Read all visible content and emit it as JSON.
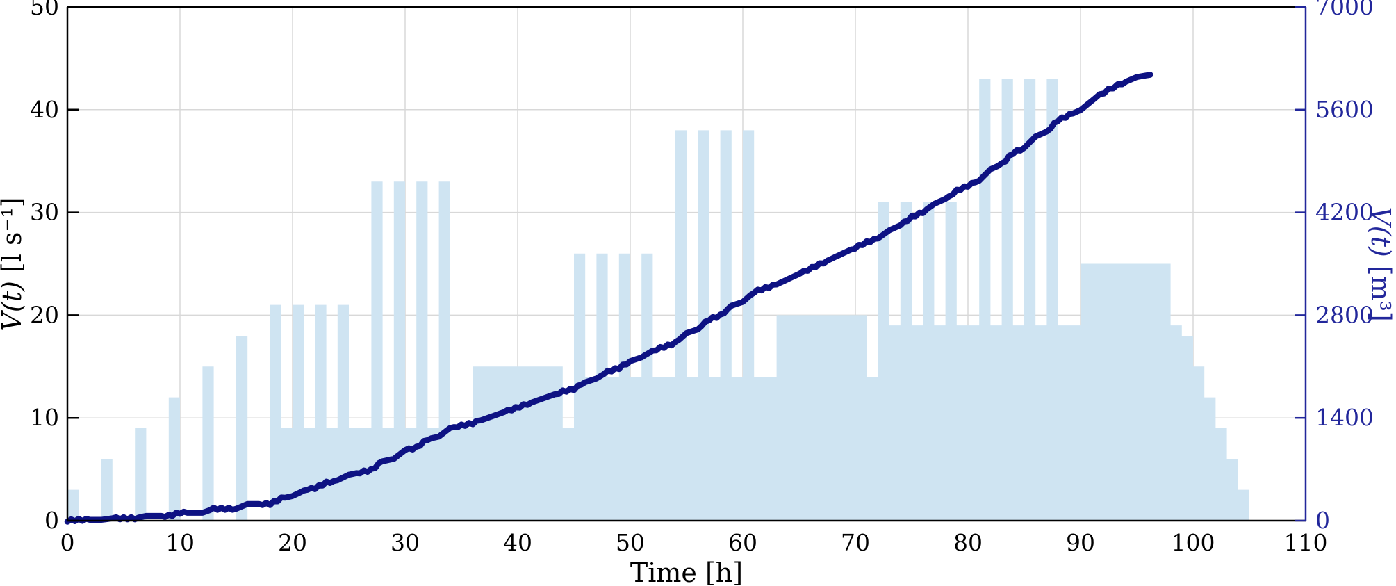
{
  "chart_data": {
    "type": "area",
    "title": "",
    "xlabel": "Time [h]",
    "ylabel_left_var": "V̇(t)",
    "ylabel_left_unit": " [l s⁻¹]",
    "ylabel_right_var": "V(t)",
    "ylabel_right_unit": " [m³]",
    "x_axis": {
      "min": 0,
      "max": 110,
      "tick_step": 10,
      "tick_labels": [
        "0",
        "10",
        "20",
        "30",
        "40",
        "50",
        "60",
        "70",
        "80",
        "90",
        "100",
        "110"
      ]
    },
    "y_left_axis": {
      "min": 0,
      "max": 50,
      "tick_step": 10,
      "tick_labels": [
        "0",
        "10",
        "20",
        "30",
        "40",
        "50"
      ]
    },
    "y_right_axis": {
      "min": 0,
      "max": 7000,
      "tick_step": 1400,
      "tick_labels": [
        "0",
        "1400",
        "2800",
        "4200",
        "5600",
        "7000"
      ]
    },
    "grid": true,
    "legend": "none",
    "series": [
      {
        "name": "flow-rate-step-area",
        "axis": "left",
        "style": "step-area",
        "segments_h_start_end_lps": [
          [
            0,
            1,
            3
          ],
          [
            3,
            4,
            6
          ],
          [
            6,
            7,
            9
          ],
          [
            9,
            10,
            12
          ],
          [
            12,
            13,
            15
          ],
          [
            15,
            16,
            18
          ],
          [
            18,
            19,
            21
          ],
          [
            19,
            20,
            9
          ],
          [
            20,
            21,
            21
          ],
          [
            21,
            22,
            9
          ],
          [
            22,
            23,
            21
          ],
          [
            23,
            24,
            9
          ],
          [
            24,
            25,
            21
          ],
          [
            25,
            27,
            9
          ],
          [
            27,
            28,
            33
          ],
          [
            28,
            29,
            9
          ],
          [
            29,
            30,
            33
          ],
          [
            30,
            31,
            9
          ],
          [
            31,
            32,
            33
          ],
          [
            32,
            33,
            9
          ],
          [
            33,
            34,
            33
          ],
          [
            34,
            36,
            9
          ],
          [
            36,
            44,
            15
          ],
          [
            44,
            45,
            9
          ],
          [
            45,
            46,
            26
          ],
          [
            46,
            47,
            14
          ],
          [
            47,
            48,
            26
          ],
          [
            48,
            49,
            14
          ],
          [
            49,
            50,
            26
          ],
          [
            50,
            51,
            14
          ],
          [
            51,
            52,
            26
          ],
          [
            52,
            54,
            14
          ],
          [
            54,
            55,
            38
          ],
          [
            55,
            56,
            14
          ],
          [
            56,
            57,
            38
          ],
          [
            57,
            58,
            14
          ],
          [
            58,
            59,
            38
          ],
          [
            59,
            60,
            14
          ],
          [
            60,
            61,
            38
          ],
          [
            61,
            63,
            14
          ],
          [
            63,
            71,
            20
          ],
          [
            71,
            72,
            14
          ],
          [
            72,
            73,
            31
          ],
          [
            73,
            74,
            19
          ],
          [
            74,
            75,
            31
          ],
          [
            75,
            76,
            19
          ],
          [
            76,
            77,
            31
          ],
          [
            77,
            78,
            19
          ],
          [
            78,
            79,
            31
          ],
          [
            79,
            81,
            19
          ],
          [
            81,
            82,
            43
          ],
          [
            82,
            83,
            19
          ],
          [
            83,
            84,
            43
          ],
          [
            84,
            85,
            19
          ],
          [
            85,
            86,
            43
          ],
          [
            86,
            87,
            19
          ],
          [
            87,
            88,
            43
          ],
          [
            88,
            90,
            19
          ],
          [
            90,
            98,
            25
          ],
          [
            98,
            99,
            19
          ],
          [
            99,
            100,
            18
          ],
          [
            100,
            101,
            15
          ],
          [
            101,
            102,
            12
          ],
          [
            102,
            103,
            9
          ],
          [
            103,
            104,
            6
          ],
          [
            104,
            105,
            3
          ]
        ]
      },
      {
        "name": "cumulative-volume-curve",
        "axis": "right",
        "style": "line",
        "points_h_m3": [
          [
            0,
            0
          ],
          [
            1,
            11
          ],
          [
            3,
            11
          ],
          [
            4,
            32
          ],
          [
            6,
            32
          ],
          [
            7,
            65
          ],
          [
            9,
            65
          ],
          [
            10,
            108
          ],
          [
            12,
            108
          ],
          [
            13,
            162
          ],
          [
            15,
            162
          ],
          [
            16,
            227
          ],
          [
            18,
            227
          ],
          [
            19,
            302
          ],
          [
            20,
            335
          ],
          [
            21,
            410
          ],
          [
            22,
            443
          ],
          [
            23,
            518
          ],
          [
            24,
            551
          ],
          [
            25,
            626
          ],
          [
            27,
            691
          ],
          [
            28,
            810
          ],
          [
            29,
            842
          ],
          [
            30,
            961
          ],
          [
            31,
            994
          ],
          [
            32,
            1112
          ],
          [
            33,
            1145
          ],
          [
            34,
            1264
          ],
          [
            36,
            1328
          ],
          [
            44,
            1760
          ],
          [
            45,
            1793
          ],
          [
            46,
            1886
          ],
          [
            47,
            1937
          ],
          [
            48,
            2030
          ],
          [
            49,
            2081
          ],
          [
            50,
            2174
          ],
          [
            51,
            2225
          ],
          [
            52,
            2318
          ],
          [
            54,
            2419
          ],
          [
            55,
            2556
          ],
          [
            56,
            2606
          ],
          [
            57,
            2743
          ],
          [
            58,
            2794
          ],
          [
            59,
            2930
          ],
          [
            60,
            2981
          ],
          [
            61,
            3118
          ],
          [
            63,
            3218
          ],
          [
            71,
            3794
          ],
          [
            72,
            3845
          ],
          [
            73,
            3956
          ],
          [
            74,
            4025
          ],
          [
            75,
            4136
          ],
          [
            76,
            4205
          ],
          [
            77,
            4316
          ],
          [
            78,
            4385
          ],
          [
            79,
            4496
          ],
          [
            81,
            4633
          ],
          [
            82,
            4788
          ],
          [
            83,
            4856
          ],
          [
            84,
            5011
          ],
          [
            85,
            5080
          ],
          [
            86,
            5234
          ],
          [
            87,
            5303
          ],
          [
            88,
            5458
          ],
          [
            90,
            5594
          ],
          [
            91.3,
            5757
          ],
          [
            92.5,
            5875
          ],
          [
            93.7,
            5960
          ],
          [
            95,
            6045
          ],
          [
            96.2,
            6076
          ]
        ]
      }
    ]
  },
  "colors": {
    "bar_fill": "#CFE4F2",
    "curve": "#0E1283",
    "right_axis": "#22279B",
    "grid": "#D8D8D8",
    "axis_black": "#000000",
    "background": "#FFFFFF"
  }
}
